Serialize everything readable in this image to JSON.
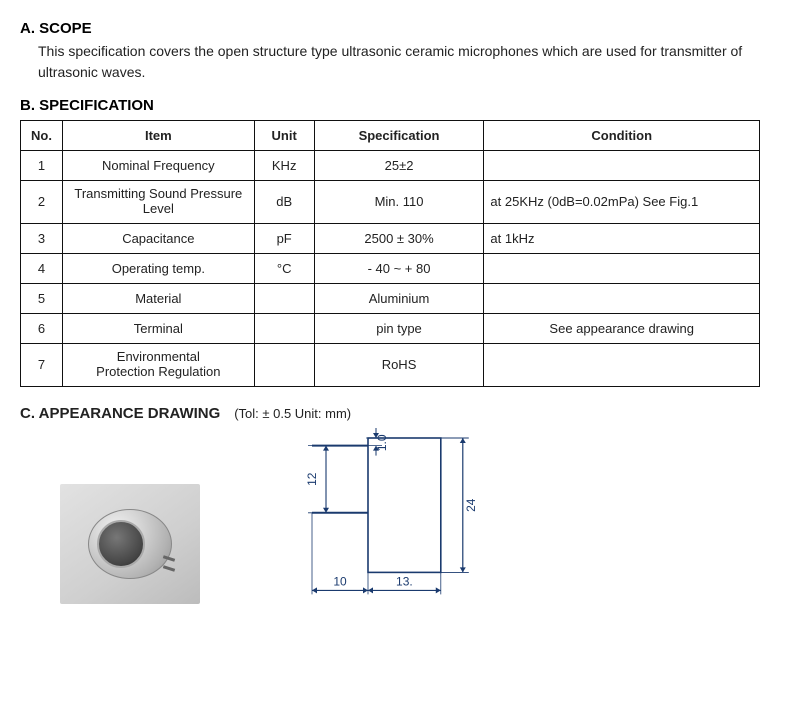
{
  "sectionA": {
    "title": "A. SCOPE",
    "text": "This specification covers the open structure type ultrasonic ceramic microphones which are used for transmitter of ultrasonic waves."
  },
  "sectionB": {
    "title": "B. SPECIFICATION",
    "headers": {
      "no": "No.",
      "item": "Item",
      "unit": "Unit",
      "spec": "Specification",
      "cond": "Condition"
    },
    "rows": [
      {
        "no": "1",
        "item": "Nominal Frequency",
        "unit": "KHz",
        "spec": "25±2",
        "cond": "",
        "condCenter": false
      },
      {
        "no": "2",
        "item": "Transmitting Sound Pressure\nLevel",
        "unit": "dB",
        "spec": "Min. 110",
        "cond": "at 25KHz (0dB=0.02mPa) See Fig.1",
        "condCenter": false
      },
      {
        "no": "3",
        "item": "Capacitance",
        "unit": "pF",
        "spec": "2500 ± 30%",
        "cond": "at 1kHz",
        "condCenter": false
      },
      {
        "no": "4",
        "item": "Operating temp.",
        "unit": "°C",
        "spec": "- 40 ~ + 80",
        "cond": "",
        "condCenter": false
      },
      {
        "no": "5",
        "item": "Material",
        "unit": "",
        "spec": "Aluminium",
        "cond": "",
        "condCenter": false
      },
      {
        "no": "6",
        "item": "Terminal",
        "unit": "",
        "spec": "pin type",
        "cond": "See appearance drawing",
        "condCenter": true
      },
      {
        "no": "7",
        "item": "Environmental\nProtection Regulation",
        "unit": "",
        "spec": "RoHS",
        "cond": "",
        "condCenter": false
      }
    ]
  },
  "sectionC": {
    "title": "C. APPEARANCE DRAWING",
    "tol": "(Tol: ± 0.5   Unit: mm)",
    "drawing": {
      "stroke": "#1a3a6e",
      "bodyW": 13,
      "bodyH": 24,
      "pinLen": 10,
      "pinGap": 12,
      "pinOffsetTop": 1.0,
      "labels": {
        "dim_h": "24",
        "dim_pin_gap": "12",
        "dim_pin_top": "1.0",
        "dim_pin_len": "10",
        "dim_body_w": "13."
      },
      "scale": 5.6,
      "fontSize": 12
    }
  }
}
